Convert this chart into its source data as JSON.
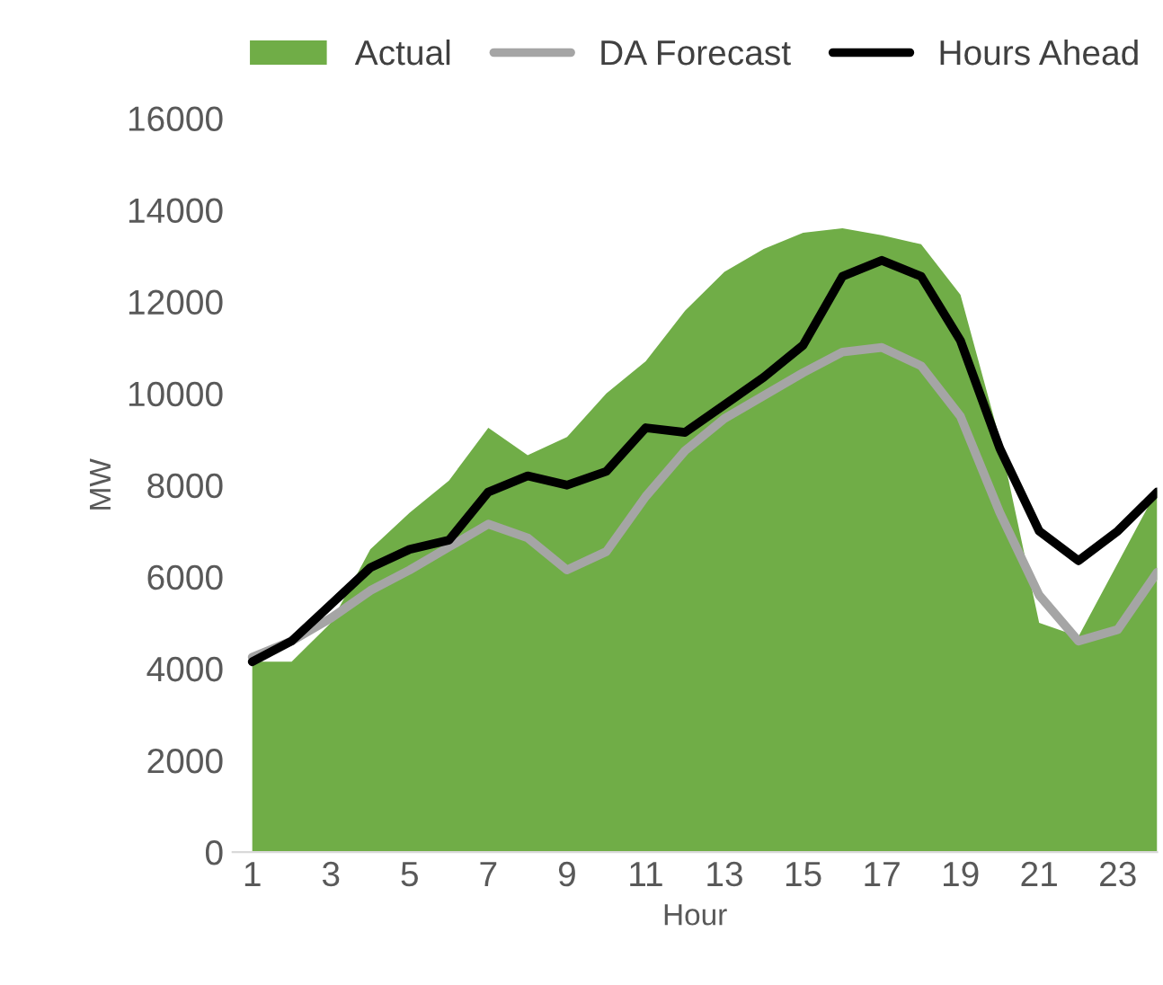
{
  "chart_data": {
    "type": "area",
    "xlabel": "Hour",
    "ylabel": "MW",
    "x": [
      1,
      2,
      3,
      4,
      5,
      6,
      7,
      8,
      9,
      10,
      11,
      12,
      13,
      14,
      15,
      16,
      17,
      18,
      19,
      20,
      21,
      22,
      23,
      24
    ],
    "series": [
      {
        "name": "Actual",
        "color": "#70ad47",
        "values": [
          4150,
          4150,
          5000,
          6600,
          7400,
          8100,
          9250,
          8650,
          9050,
          10000,
          10700,
          11800,
          12650,
          13150,
          13500,
          13600,
          13450,
          13250,
          12150,
          9000,
          5000,
          4700,
          6300,
          7900
        ]
      },
      {
        "name": "DA Forecast",
        "type": "line",
        "color": "#a5a5a5",
        "values": [
          4250,
          4600,
          5100,
          5700,
          6150,
          6650,
          7150,
          6850,
          6150,
          6550,
          7750,
          8750,
          9450,
          9950,
          10450,
          10900,
          11000,
          10600,
          9500,
          7400,
          5600,
          4600,
          4850,
          6100
        ]
      },
      {
        "name": "Hours Ahead",
        "type": "line",
        "color": "#000000",
        "values": [
          4150,
          4600,
          5400,
          6200,
          6600,
          6800,
          7850,
          8200,
          8000,
          8300,
          9250,
          9150,
          9750,
          10350,
          11050,
          12550,
          12900,
          12550,
          11150,
          8800,
          7000,
          6350,
          7000,
          7850
        ]
      }
    ],
    "xlim": [
      0.5,
      24
    ],
    "xticks": [
      1,
      3,
      5,
      7,
      9,
      11,
      13,
      15,
      17,
      19,
      21,
      23
    ],
    "ylim": [
      0,
      16000
    ],
    "yticks": [
      0,
      2000,
      4000,
      6000,
      8000,
      10000,
      12000,
      14000,
      16000
    ],
    "grid": false,
    "legend": "top",
    "marker": "none",
    "line_style": "solid"
  }
}
